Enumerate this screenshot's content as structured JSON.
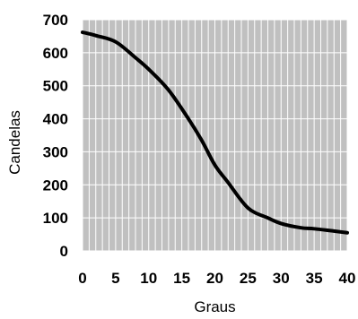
{
  "chart_data": {
    "type": "line",
    "title": "",
    "xlabel": "Graus",
    "ylabel": "Candelas",
    "xlim": [
      0,
      40
    ],
    "ylim": [
      0,
      700
    ],
    "grid": true,
    "x_ticks": [
      0,
      5,
      10,
      15,
      20,
      25,
      30,
      35,
      40
    ],
    "y_ticks": [
      0,
      100,
      200,
      300,
      400,
      500,
      600,
      700
    ],
    "x_tick_labels": [
      "0",
      "5",
      "10",
      "15",
      "20",
      "25",
      "30",
      "35",
      "40"
    ],
    "y_tick_labels": [
      "0",
      "100",
      "200",
      "300",
      "400",
      "500",
      "600",
      "700"
    ],
    "x_minor_step": 1,
    "colors": {
      "plot_background": "#c0c0c0",
      "grid": "#ffffff",
      "line": "#000000"
    },
    "series": [
      {
        "x": [
          0,
          2,
          5,
          8,
          10,
          13,
          16,
          18,
          20,
          22,
          25,
          28,
          30,
          33,
          35,
          38,
          40
        ],
        "y": [
          662,
          652,
          633,
          585,
          550,
          487,
          400,
          335,
          260,
          207,
          130,
          100,
          83,
          70,
          67,
          60,
          55
        ]
      }
    ]
  }
}
